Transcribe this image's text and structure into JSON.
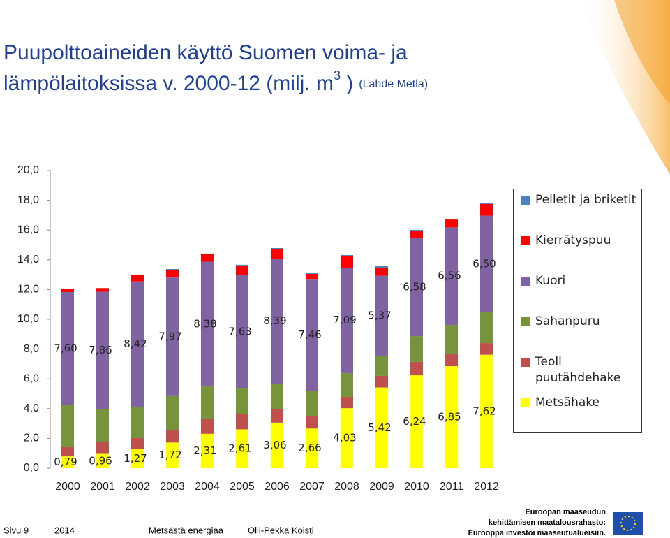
{
  "chart_data": {
    "type": "stacked_bar",
    "title_line1": "Puupolttoaineiden käyttö Suomen voima- ja",
    "title_line2": "lämpölaitoksissa v. 2000-12  (milj. m",
    "title_sup": "3",
    "title_close": " )",
    "source": "(Lähde Metla)",
    "categories": [
      "2000",
      "2001",
      "2002",
      "2003",
      "2004",
      "2005",
      "2006",
      "2007",
      "2008",
      "2009",
      "2010",
      "2011",
      "2012"
    ],
    "series": [
      {
        "name": "Metsähake",
        "color": "#ffff00",
        "values": [
          0.79,
          0.96,
          1.27,
          1.72,
          2.31,
          2.61,
          3.06,
          2.66,
          4.03,
          5.42,
          6.24,
          6.85,
          7.62
        ],
        "value_labels": [
          "0,79",
          "0,96",
          "1,27",
          "1,72",
          "2,31",
          "2,61",
          "3,06",
          "2,66",
          "4,03",
          "5,42",
          "6,24",
          "6,85",
          "7,62"
        ]
      },
      {
        "name": "Teoll puutähdehake",
        "color": "#c0504d",
        "values": [
          0.62,
          0.82,
          0.75,
          0.86,
          0.98,
          1.01,
          0.93,
          0.86,
          0.76,
          0.78,
          0.9,
          0.85,
          0.78
        ]
      },
      {
        "name": "Sahanpuru",
        "color": "#77933c",
        "values": [
          2.82,
          2.21,
          2.11,
          2.26,
          2.2,
          1.73,
          1.69,
          1.69,
          1.59,
          1.36,
          1.73,
          1.92,
          2.07
        ]
      },
      {
        "name": "Kuori",
        "color": "#8064a2",
        "values": [
          7.6,
          7.86,
          8.42,
          7.97,
          8.38,
          7.63,
          8.39,
          7.46,
          7.09,
          5.37,
          6.58,
          6.56,
          6.5
        ],
        "value_labels": [
          "7,60",
          "7,86",
          "8,42",
          "7,97",
          "8,38",
          "7,63",
          "8,39",
          "7,46",
          "7,09",
          "5,37",
          "6,58",
          "6,56",
          "6,50"
        ]
      },
      {
        "name": "Kierrätyspuu",
        "color": "#ff0000",
        "values": [
          0.2,
          0.25,
          0.41,
          0.52,
          0.5,
          0.64,
          0.67,
          0.38,
          0.8,
          0.54,
          0.51,
          0.53,
          0.78
        ]
      },
      {
        "name": "Pelletit ja briketit",
        "color": "#4f81bd",
        "values": [
          0,
          0,
          0.05,
          0.05,
          0.05,
          0.05,
          0.05,
          0.05,
          0.05,
          0.1,
          0.05,
          0.05,
          0.07
        ]
      }
    ],
    "ylim": [
      0,
      20
    ],
    "yticks": [
      {
        "value": 0,
        "label": "0,0"
      },
      {
        "value": 2,
        "label": "2,0"
      },
      {
        "value": 4,
        "label": "4,0"
      },
      {
        "value": 6,
        "label": "6,0"
      },
      {
        "value": 8,
        "label": "8,0"
      },
      {
        "value": 10,
        "label": "10,0"
      },
      {
        "value": 12,
        "label": "12,0"
      },
      {
        "value": 14,
        "label": "14,0"
      },
      {
        "value": 16,
        "label": "16,0"
      },
      {
        "value": 18,
        "label": "18,0"
      },
      {
        "value": 20,
        "label": "20,0"
      }
    ],
    "footer": {
      "page": "Sivu 9",
      "year": "2014",
      "event": "Metsästä energiaa",
      "author": "Olli-Pekka Koisti",
      "eu_lines": [
        "Euroopan maaseudun",
        "kehittämisen maatalousrahasto:",
        "Eurooppa investoi maaseutualueisiin."
      ]
    }
  }
}
